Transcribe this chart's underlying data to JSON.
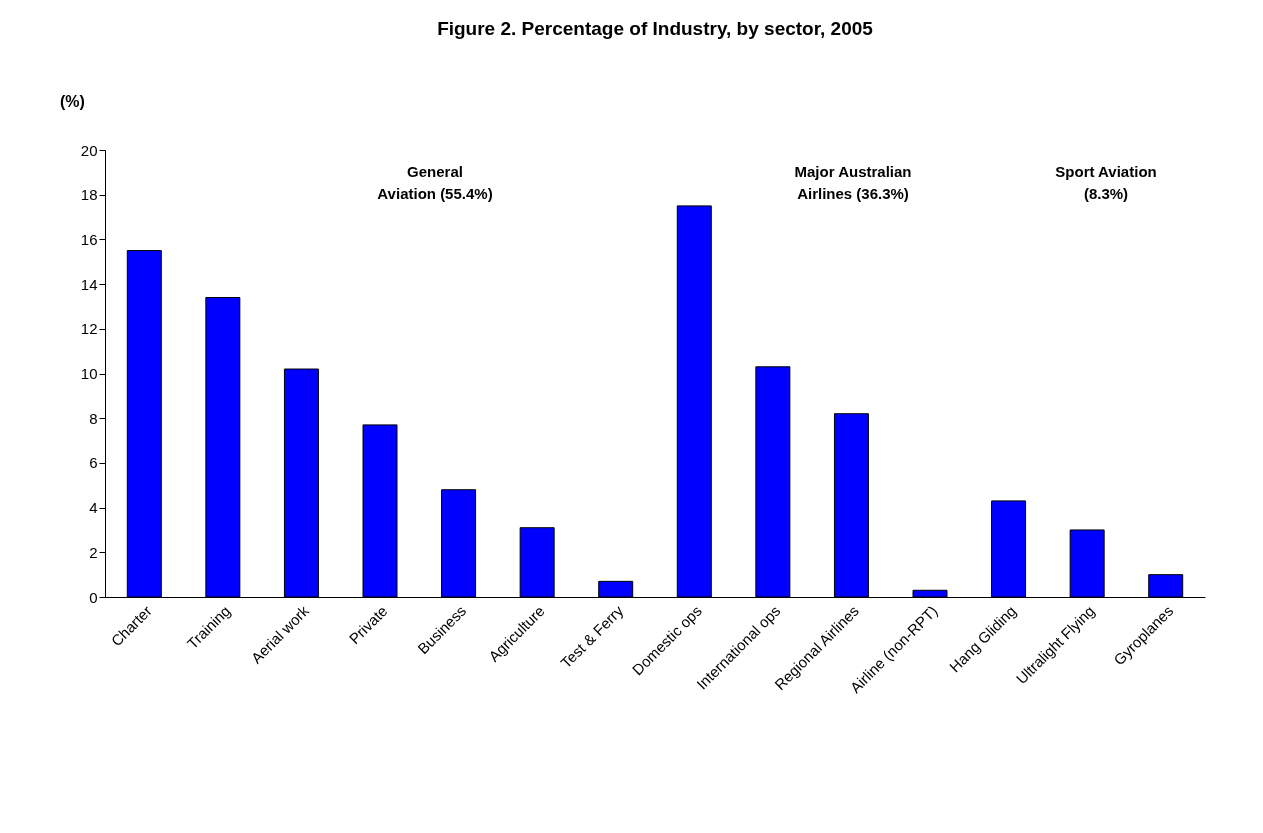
{
  "chart_data": {
    "type": "bar",
    "title": "Figure 2.        Percentage of Industry, by sector, 2005",
    "ylabel": "(%)",
    "categories": [
      "Charter",
      "Training",
      "Aerial work",
      "Private",
      "Business",
      "Agriculture",
      "Test & Ferry",
      "Domestic ops",
      "International ops",
      "Regional Airlines",
      "Airline (non-RPT)",
      "Hang Gliding",
      "Ultralight Flying",
      "Gyroplanes"
    ],
    "values": [
      15.5,
      13.4,
      10.2,
      7.7,
      4.8,
      3.1,
      0.7,
      17.5,
      10.3,
      8.2,
      0.3,
      4.3,
      3.0,
      1.0
    ],
    "color": "#0000ff",
    "ylim": [
      0,
      20
    ],
    "yticks": [
      0,
      2,
      4,
      6,
      8,
      10,
      12,
      14,
      16,
      18,
      20
    ],
    "grid": false,
    "annotations": [
      "General\nAviation (55.4%)",
      "Major Australian\nAirlines (36.3%)",
      "Sport Aviation\n(8.3%)"
    ]
  }
}
